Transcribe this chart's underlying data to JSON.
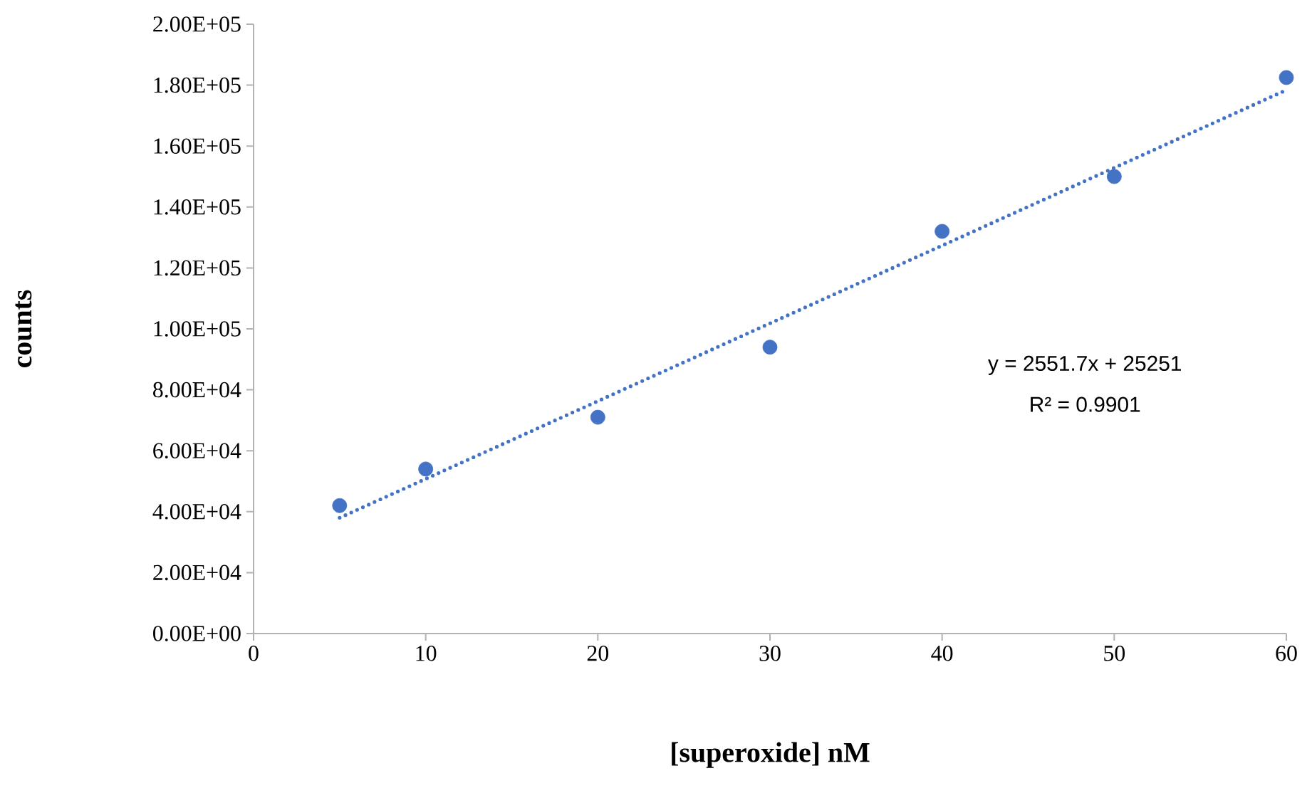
{
  "chart_data": {
    "type": "scatter",
    "xlabel": "[superoxide] nM",
    "ylabel": "counts",
    "xlim": [
      0,
      60
    ],
    "xticks": [
      0,
      10,
      20,
      30,
      40,
      50,
      60
    ],
    "ylim": [
      0,
      200000
    ],
    "yticks": [
      {
        "value": 0,
        "label": "0.00E+00"
      },
      {
        "value": 20000,
        "label": "2.00E+04"
      },
      {
        "value": 40000,
        "label": "4.00E+04"
      },
      {
        "value": 60000,
        "label": "6.00E+04"
      },
      {
        "value": 80000,
        "label": "8.00E+04"
      },
      {
        "value": 100000,
        "label": "1.00E+05"
      },
      {
        "value": 120000,
        "label": "1.20E+05"
      },
      {
        "value": 140000,
        "label": "1.40E+05"
      },
      {
        "value": 160000,
        "label": "1.60E+05"
      },
      {
        "value": 180000,
        "label": "1.80E+05"
      },
      {
        "value": 200000,
        "label": "2.00E+05"
      }
    ],
    "annotations": [
      "y = 2551.7x + 25251",
      "R² = 0.9901"
    ],
    "series": [
      {
        "color": "#4472c4",
        "marker": "circle",
        "x": [
          5,
          10,
          20,
          30,
          40,
          50,
          60
        ],
        "values": [
          42000,
          54000,
          71000,
          94000,
          132000,
          150000,
          182500
        ]
      },
      {
        "type": "line",
        "color": "#4472c4",
        "marker": "none",
        "line_style": "dotted",
        "x": [
          5,
          60
        ],
        "values": [
          38000,
          178400
        ]
      }
    ]
  }
}
